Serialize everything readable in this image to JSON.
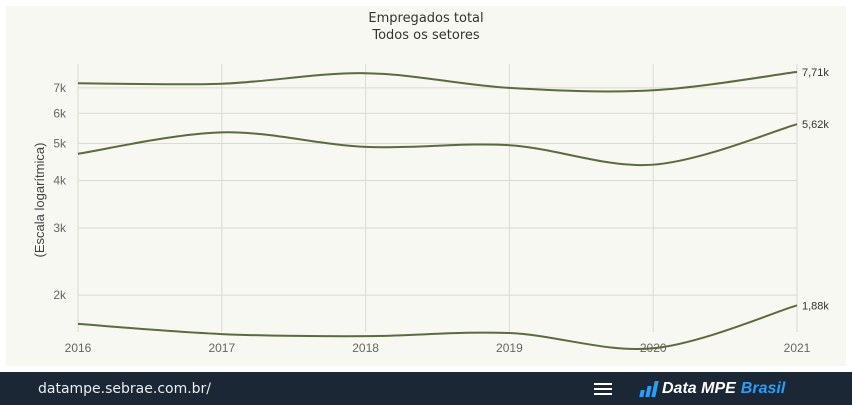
{
  "chart_data": {
    "type": "line",
    "title": "Empregados total",
    "subtitle": "Todos os setores",
    "ylabel": "(Escala logarítmica)",
    "xlabel": "",
    "y_scale": "log",
    "ylim": [
      1600,
      7800
    ],
    "x": [
      "2016",
      "2017",
      "2018",
      "2019",
      "2020",
      "2021"
    ],
    "y_ticks": [
      {
        "value": 2000,
        "label": "2k"
      },
      {
        "value": 3000,
        "label": "3k"
      },
      {
        "value": 4000,
        "label": "4k"
      },
      {
        "value": 5000,
        "label": "5k"
      },
      {
        "value": 6000,
        "label": "6k"
      },
      {
        "value": 7000,
        "label": "7k"
      }
    ],
    "grid": true,
    "line_color": "#5c6b3d",
    "series": [
      {
        "values": [
          7200,
          7180,
          7650,
          7000,
          6900,
          7710
        ],
        "end_label": "7,71k"
      },
      {
        "values": [
          4700,
          5350,
          4900,
          4950,
          4400,
          5620
        ],
        "end_label": "5,62k"
      },
      {
        "values": [
          1680,
          1580,
          1560,
          1590,
          1450,
          1880
        ],
        "end_label": "1,88k"
      }
    ]
  },
  "footer": {
    "url": "datampe.sebrae.com.br/",
    "brand_main": "Data MPE",
    "brand_accent": "Brasil",
    "menu_icon": "hamburger-menu-icon",
    "background": "#1b2735",
    "accent": "#2a9df4"
  }
}
